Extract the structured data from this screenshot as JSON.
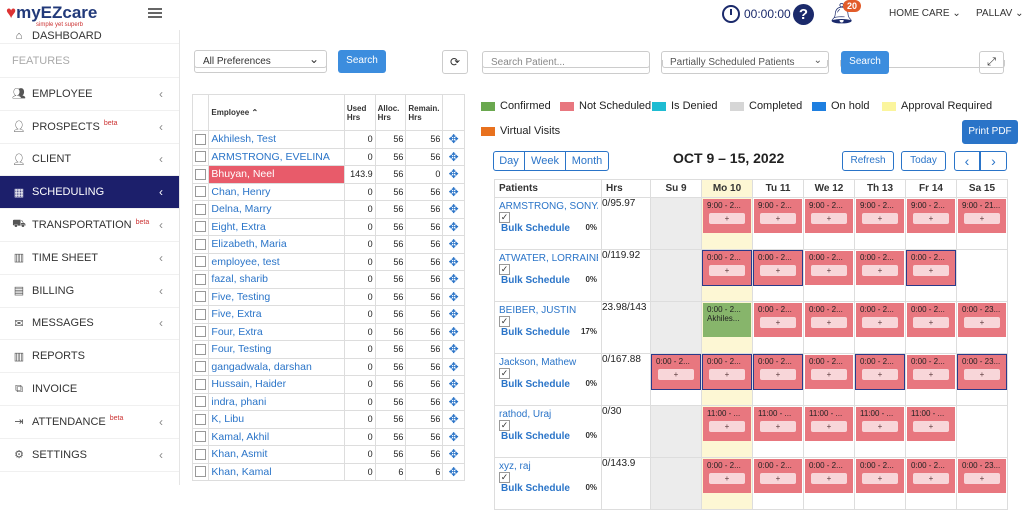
{
  "topbar": {
    "logo": "myEZcare",
    "tagline": "simple yet superb",
    "timer": "00:00:00",
    "notifications": "20",
    "home_care": "HOME CARE",
    "user": "PALLAV"
  },
  "sidebar": {
    "items": [
      {
        "label": "DASHBOARD",
        "icon": "home-icon",
        "chev": false,
        "beta": ""
      },
      {
        "label": "EMPLOYEE",
        "icon": "users-icon",
        "chev": true,
        "beta": ""
      },
      {
        "label": "PROSPECTS",
        "icon": "user-icon",
        "chev": true,
        "beta": "beta"
      },
      {
        "label": "CLIENT",
        "icon": "user-icon",
        "chev": true,
        "beta": ""
      },
      {
        "label": "SCHEDULING",
        "icon": "calendar-icon",
        "chev": true,
        "beta": "",
        "active": true
      },
      {
        "label": "TRANSPORTATION",
        "icon": "truck-icon",
        "chev": true,
        "beta": "beta"
      },
      {
        "label": "TIME SHEET",
        "icon": "bar-chart-icon",
        "chev": true,
        "beta": ""
      },
      {
        "label": "BILLING",
        "icon": "file-icon",
        "chev": true,
        "beta": ""
      },
      {
        "label": "MESSAGES",
        "icon": "envelope-icon",
        "chev": true,
        "beta": ""
      },
      {
        "label": "REPORTS",
        "icon": "bar-chart-icon",
        "chev": false,
        "beta": ""
      },
      {
        "label": "INVOICE",
        "icon": "copy-icon",
        "chev": false,
        "beta": ""
      },
      {
        "label": "ATTENDANCE",
        "icon": "signin-icon",
        "chev": true,
        "beta": "beta"
      },
      {
        "label": "SETTINGS",
        "icon": "gear-icon",
        "chev": true,
        "beta": ""
      }
    ],
    "features_label": "FEATURES"
  },
  "employees": {
    "filter": "All Preferences",
    "search": "Search",
    "headers": [
      "Employee",
      "Used Hrs",
      "Alloc. Hrs",
      "Remain. Hrs"
    ],
    "rows": [
      [
        "Akhilesh, Test",
        "0",
        "56",
        "56"
      ],
      [
        "ARMSTRONG, EVELINA",
        "0",
        "56",
        "56"
      ],
      [
        "Bhuyan, Neel",
        "143.9",
        "56",
        "0"
      ],
      [
        "Chan, Henry",
        "0",
        "56",
        "56"
      ],
      [
        "Delna, Marry",
        "0",
        "56",
        "56"
      ],
      [
        "Eight, Extra",
        "0",
        "56",
        "56"
      ],
      [
        "Elizabeth, Maria",
        "0",
        "56",
        "56"
      ],
      [
        "employee, test",
        "0",
        "56",
        "56"
      ],
      [
        "fazal, sharib",
        "0",
        "56",
        "56"
      ],
      [
        "Five, Testing",
        "0",
        "56",
        "56"
      ],
      [
        "Five, Extra",
        "0",
        "56",
        "56"
      ],
      [
        "Four, Extra",
        "0",
        "56",
        "56"
      ],
      [
        "Four, Testing",
        "0",
        "56",
        "56"
      ],
      [
        "gangadwala, darshan",
        "0",
        "56",
        "56"
      ],
      [
        "Hussain, Haider",
        "0",
        "56",
        "56"
      ],
      [
        "indra, phani",
        "0",
        "56",
        "56"
      ],
      [
        "K, Libu",
        "0",
        "56",
        "56"
      ],
      [
        "Kamal, Akhil",
        "0",
        "56",
        "56"
      ],
      [
        "Khan, Asmit",
        "0",
        "56",
        "56"
      ],
      [
        "Khan, Kamal",
        "0",
        "6",
        "6"
      ]
    ]
  },
  "schedule": {
    "search_placeholder": "Search Patient...",
    "patient_filter": "Partially Scheduled Patients",
    "search": "Search",
    "print": "Print PDF",
    "legend": [
      {
        "label": "Confirmed",
        "color": "#6aa84f"
      },
      {
        "label": "Not Scheduled",
        "color": "#e8777f"
      },
      {
        "label": "Is Denied",
        "color": "#1fbcd2"
      },
      {
        "label": "Completed",
        "color": "#d6d6d6"
      },
      {
        "label": "On hold",
        "color": "#1e7fe0"
      },
      {
        "label": "Approval Required",
        "color": "#fbf59d"
      },
      {
        "label": "Virtual Visits",
        "color": "#e8711e"
      }
    ],
    "views": [
      "Day",
      "Week",
      "Month"
    ],
    "range": "OCT 9 – 15, 2022",
    "refresh": "Refresh",
    "today": "Today",
    "prev": "‹",
    "next": "›",
    "columns": [
      "Patients",
      "Hrs",
      "Su 9",
      "Mo 10",
      "Tu 11",
      "We 12",
      "Th 13",
      "Fr 14",
      "Sa 15"
    ],
    "rows": [
      {
        "name": "ARMSTRONG, SONYA",
        "hrs": "0/95.97",
        "pct": "0%",
        "checked": true,
        "cells": [
          "gray",
          "9:00 - 2...",
          "9:00 - 2...",
          "9:00 - 2...",
          "9:00 - 2...",
          "9:00 - 2...",
          "9:00 - 21..."
        ]
      },
      {
        "name": "ATWATER, LORRAINE",
        "hrs": "0/119.92",
        "pct": "0%",
        "checked": true,
        "cells": [
          "gray",
          "0:00 - 2...|b",
          "0:00 - 2...|b",
          "0:00 - 2...",
          "0:00 - 2...",
          "0:00 - 2...|b",
          ""
        ]
      },
      {
        "name": "BEIBER, JUSTIN",
        "hrs": "23.98/143",
        "pct": "17%",
        "checked": true,
        "cells": [
          "gray",
          "0:00 - 2...|g|Akhiles...",
          "0:00 - 2...",
          "0:00 - 2...",
          "0:00 - 2...",
          "0:00 - 2...",
          "0:00 - 23..."
        ]
      },
      {
        "name": "Jackson, Mathew",
        "hrs": "0/167.88",
        "pct": "0%",
        "checked": true,
        "cells": [
          "0:00 - 2...|b",
          "0:00 - 2...|b",
          "0:00 - 2...|b",
          "0:00 - 2...",
          "0:00 - 2...|b",
          "0:00 - 2...",
          "0:00 - 23...|b"
        ]
      },
      {
        "name": "rathod, Uraj",
        "hrs": "0/30",
        "pct": "0%",
        "checked": true,
        "cells": [
          "gray",
          "11:00 - ...",
          "11:00 - ...",
          "11:00 - ...",
          "11:00 - ...",
          "11:00 - ...",
          ""
        ]
      },
      {
        "name": "xyz, raj",
        "hrs": "0/143.9",
        "pct": "0%",
        "checked": true,
        "cells": [
          "gray",
          "0:00 - 2...",
          "0:00 - 2...",
          "0:00 - 2...",
          "0:00 - 2...",
          "0:00 - 2...",
          "0:00 - 23..."
        ]
      }
    ],
    "bulk": "Bulk Schedule"
  }
}
